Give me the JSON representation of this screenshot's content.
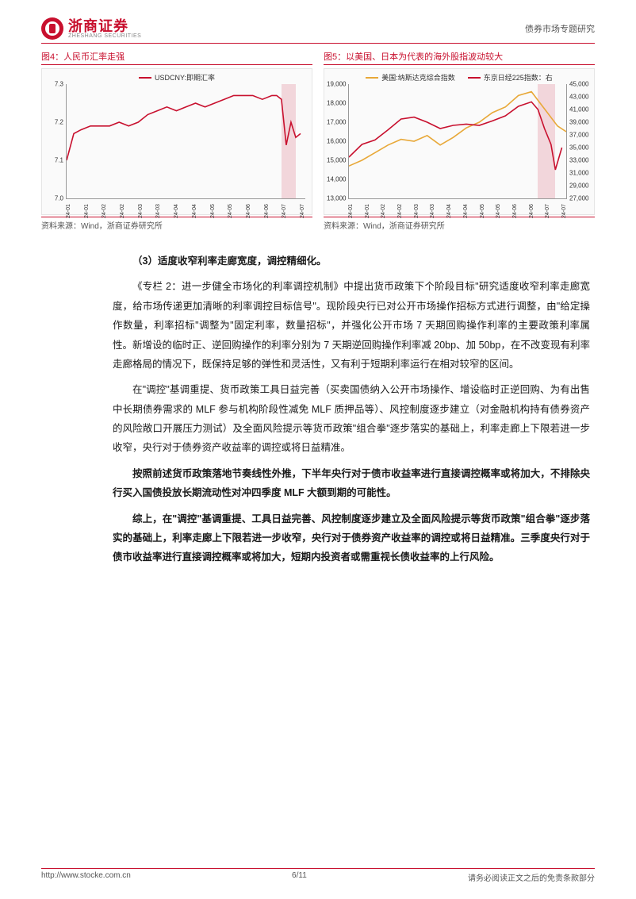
{
  "header": {
    "logo_main": "浙商证券",
    "logo_sub": "ZHESHANG SECURITIES",
    "right_text": "债券市场专题研究"
  },
  "chart4": {
    "title": "图4：人民币汇率走强",
    "source": "资料来源：Wind，浙商证券研究所",
    "legend": [
      {
        "label": "USDCNY:即期汇率",
        "color": "#c8102e"
      }
    ],
    "ylim": [
      7.0,
      7.3
    ],
    "yticks": [
      "7.0",
      "7.1",
      "7.2",
      "7.3"
    ],
    "xticks": [
      "24-01",
      "24-01",
      "24-02",
      "24-02",
      "24-03",
      "24-03",
      "24-04",
      "24-04",
      "24-05",
      "24-05",
      "24-06",
      "24-06",
      "24-07",
      "24-07"
    ],
    "highlight": {
      "left_pct": 90,
      "width_pct": 6
    },
    "series": [
      {
        "color": "#c8102e",
        "width": 1.6,
        "points": [
          [
            0,
            7.1
          ],
          [
            3,
            7.17
          ],
          [
            6,
            7.18
          ],
          [
            10,
            7.19
          ],
          [
            14,
            7.19
          ],
          [
            18,
            7.19
          ],
          [
            22,
            7.2
          ],
          [
            26,
            7.19
          ],
          [
            30,
            7.2
          ],
          [
            34,
            7.22
          ],
          [
            38,
            7.23
          ],
          [
            42,
            7.24
          ],
          [
            46,
            7.23
          ],
          [
            50,
            7.24
          ],
          [
            54,
            7.25
          ],
          [
            58,
            7.24
          ],
          [
            62,
            7.25
          ],
          [
            66,
            7.26
          ],
          [
            70,
            7.27
          ],
          [
            74,
            7.27
          ],
          [
            78,
            7.27
          ],
          [
            82,
            7.26
          ],
          [
            86,
            7.27
          ],
          [
            88,
            7.27
          ],
          [
            90,
            7.26
          ],
          [
            92,
            7.14
          ],
          [
            94,
            7.2
          ],
          [
            96,
            7.16
          ],
          [
            98,
            7.17
          ]
        ]
      }
    ]
  },
  "chart5": {
    "title": "图5：以美国、日本为代表的海外股指波动较大",
    "source": "资料来源：Wind，浙商证券研究所",
    "legend": [
      {
        "label": "美国:纳斯达克综合指数",
        "color": "#e8a838"
      },
      {
        "label": "东京日经225指数：右",
        "color": "#c8102e"
      }
    ],
    "ylim_left": [
      13000,
      19000
    ],
    "yticks_left": [
      "13,000",
      "14,000",
      "15,000",
      "16,000",
      "17,000",
      "18,000",
      "19,000"
    ],
    "ylim_right": [
      27000,
      45000
    ],
    "yticks_right": [
      "27,000",
      "29,000",
      "31,000",
      "33,000",
      "35,000",
      "37,000",
      "39,000",
      "41,000",
      "43,000",
      "45,000"
    ],
    "xticks": [
      "24-01",
      "24-01",
      "24-02",
      "24-02",
      "24-03",
      "24-03",
      "24-04",
      "24-04",
      "24-05",
      "24-05",
      "24-06",
      "24-06",
      "24-07",
      "24-07"
    ],
    "highlight": {
      "left_pct": 87,
      "width_pct": 8
    },
    "series": [
      {
        "color": "#e8a838",
        "width": 1.6,
        "axis": "left",
        "points": [
          [
            0,
            14700
          ],
          [
            6,
            15000
          ],
          [
            12,
            15400
          ],
          [
            18,
            15800
          ],
          [
            24,
            16100
          ],
          [
            30,
            16000
          ],
          [
            36,
            16300
          ],
          [
            42,
            15800
          ],
          [
            48,
            16200
          ],
          [
            54,
            16700
          ],
          [
            60,
            17000
          ],
          [
            66,
            17500
          ],
          [
            72,
            17800
          ],
          [
            78,
            18400
          ],
          [
            84,
            18600
          ],
          [
            88,
            18000
          ],
          [
            92,
            17400
          ],
          [
            96,
            16800
          ],
          [
            100,
            16500
          ]
        ]
      },
      {
        "color": "#c8102e",
        "width": 1.6,
        "axis": "right",
        "points": [
          [
            0,
            33500
          ],
          [
            6,
            35500
          ],
          [
            12,
            36200
          ],
          [
            18,
            37800
          ],
          [
            24,
            39500
          ],
          [
            30,
            39800
          ],
          [
            36,
            39000
          ],
          [
            42,
            38000
          ],
          [
            48,
            38500
          ],
          [
            54,
            38700
          ],
          [
            60,
            38500
          ],
          [
            66,
            39200
          ],
          [
            72,
            40000
          ],
          [
            78,
            41500
          ],
          [
            84,
            42200
          ],
          [
            87,
            41000
          ],
          [
            90,
            38000
          ],
          [
            93,
            35500
          ],
          [
            95,
            31500
          ],
          [
            98,
            35000
          ]
        ]
      }
    ]
  },
  "body": {
    "h1": "（3）适度收窄利率走廊宽度，调控精细化。",
    "p1": "《专栏 2：进一步健全市场化的利率调控机制》中提出货币政策下个阶段目标\"研究适度收窄利率走廊宽度，给市场传递更加清晰的利率调控目标信号\"。现阶段央行已对公开市场操作招标方式进行调整，由\"给定操作数量，利率招标\"调整为\"固定利率，数量招标\"，并强化公开市场 7 天期回购操作利率的主要政策利率属性。新增设的临时正、逆回购操作的利率分别为 7 天期逆回购操作利率减 20bp、加 50bp，在不改变现有利率走廊格局的情况下，既保持足够的弹性和灵活性，又有利于短期利率运行在相对较窄的区间。",
    "p2": "在\"调控\"基调重提、货币政策工具日益完善（买卖国债纳入公开市场操作、增设临时正逆回购、为有出售中长期债券需求的 MLF 参与机构阶段性减免 MLF 质押品等）、风控制度逐步建立（对金融机构持有债券资产的风险敞口开展压力测试）及全面风险提示等货币政策\"组合拳\"逐步落实的基础上，利率走廊上下限若进一步收窄，央行对于债券资产收益率的调控或将日益精准。",
    "p3": "按照前述货币政策落地节奏线性外推，下半年央行对于债市收益率进行直接调控概率或将加大，不排除央行买入国债投放长期流动性对冲四季度 MLF 大额到期的可能性。",
    "p4": "综上，在\"调控\"基调重提、工具日益完善、风控制度逐步建立及全面风险提示等货币政策\"组合拳\"逐步落实的基础上，利率走廊上下限若进一步收窄，央行对于债券资产收益率的调控或将日益精准。三季度央行对于债市收益率进行直接调控概率或将加大，短期内投资者或需重视长债收益率的上行风险。"
  },
  "footer": {
    "left": "http://www.stocke.com.cn",
    "center": "6/11",
    "right": "请务必阅读正文之后的免责条款部分"
  }
}
